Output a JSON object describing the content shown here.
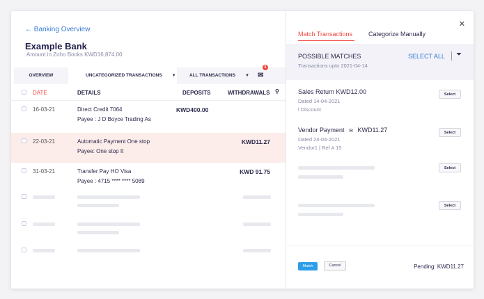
{
  "left": {
    "back": "Banking Overview",
    "bank": "Example Bank",
    "amount": "Amount in Zoho Books KWD16,874.00",
    "tabs": [
      "OVERVIEW",
      "UNCATEGORIZED TRANSACTIONS",
      "ALL TRANSACTIONS"
    ],
    "badge_count": "5",
    "columns": {
      "date": "DATE",
      "details": "DETAILS",
      "deposits": "DEPOSITS",
      "withdrawals": "WITHDRAWALS"
    },
    "rows": [
      {
        "date": "16-03-21",
        "line1": "Direct Credit 7064",
        "line2": "Payee : J D Boyce Trading As",
        "deposit": "KWD400.00",
        "withdrawal": ""
      },
      {
        "date": "22-03-21",
        "line1": "Automatic Payment One stop",
        "line2": "Payee: One stop It",
        "deposit": "",
        "withdrawal": "KWD11.27"
      },
      {
        "date": "31-03-21",
        "line1": "Transfer Pay HO Visa",
        "line2": "Payee : 4715 **** **** 5089",
        "deposit": "",
        "withdrawal": "KWD 91.75"
      }
    ]
  },
  "right": {
    "tab_match": "Match Transactions",
    "tab_manual": "Categorize Manually",
    "accent": "#f0483e",
    "possible": "POSSIBLE MATCHES",
    "upto": "Transactions upto  2021-04-14",
    "select_all": "SELECT ALL",
    "matches": [
      {
        "title": "Sales Return KWD12.00",
        "dated": "Dated  14-04-2021",
        "meta": "l Discount",
        "select": "Select"
      },
      {
        "title": "Vendor Payment",
        "amount": "KWD11.27",
        "dated": "Dated  24-04-2021",
        "meta": "Vendor1 | Ref # 15",
        "select": "Select"
      }
    ],
    "select": "Select",
    "match": "Match",
    "cancel": "Cancel",
    "pending": "Pending: KWD11.27"
  }
}
